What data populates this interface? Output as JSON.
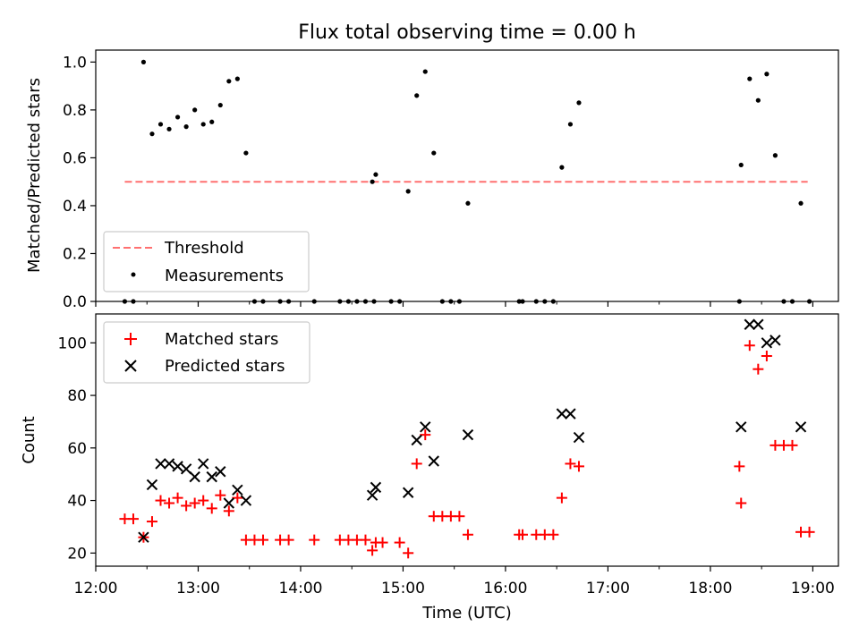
{
  "chart_data": [
    {
      "type": "scatter",
      "title": "Flux total observing time = 0.00 h",
      "xlabel": "",
      "ylabel": "Matched/Predicted stars",
      "xlim": [
        "12:00",
        "19:15"
      ],
      "ylim": [
        0,
        1.05
      ],
      "yticks": [
        "0.0",
        "0.2",
        "0.4",
        "0.6",
        "0.8",
        "1.0"
      ],
      "grid": false,
      "legend_position": "lower-left",
      "threshold": {
        "name": "Threshold",
        "value": 0.5,
        "x_start": "12:17",
        "x_end": "18:57",
        "color": "#ff7070",
        "style": "dashed"
      },
      "series": [
        {
          "name": "Measurements",
          "marker": "dot",
          "color": "#000000",
          "points": [
            [
              "12:17",
              0
            ],
            [
              "12:22",
              0
            ],
            [
              "12:28",
              1.0
            ],
            [
              "12:33",
              0.7
            ],
            [
              "12:38",
              0.74
            ],
            [
              "12:43",
              0.72
            ],
            [
              "12:48",
              0.77
            ],
            [
              "12:53",
              0.73
            ],
            [
              "12:58",
              0.8
            ],
            [
              "13:03",
              0.74
            ],
            [
              "13:08",
              0.75
            ],
            [
              "13:13",
              0.82
            ],
            [
              "13:18",
              0.92
            ],
            [
              "13:23",
              0.93
            ],
            [
              "13:28",
              0.62
            ],
            [
              "13:33",
              0
            ],
            [
              "13:38",
              0
            ],
            [
              "13:48",
              0
            ],
            [
              "13:53",
              0
            ],
            [
              "14:08",
              0
            ],
            [
              "14:23",
              0
            ],
            [
              "14:28",
              0
            ],
            [
              "14:33",
              0
            ],
            [
              "14:38",
              0
            ],
            [
              "14:43",
              0
            ],
            [
              "14:42",
              0.5
            ],
            [
              "14:44",
              0.53
            ],
            [
              "14:53",
              0
            ],
            [
              "14:58",
              0
            ],
            [
              "15:03",
              0.46
            ],
            [
              "15:08",
              0.86
            ],
            [
              "15:13",
              0.96
            ],
            [
              "15:18",
              0.62
            ],
            [
              "15:23",
              0
            ],
            [
              "15:28",
              0
            ],
            [
              "15:33",
              0
            ],
            [
              "15:38",
              0.41
            ],
            [
              "16:08",
              0
            ],
            [
              "16:10",
              0
            ],
            [
              "16:18",
              0
            ],
            [
              "16:23",
              0
            ],
            [
              "16:28",
              0
            ],
            [
              "16:33",
              0.56
            ],
            [
              "16:38",
              0.74
            ],
            [
              "16:43",
              0.83
            ],
            [
              "18:17",
              0
            ],
            [
              "18:18",
              0.57
            ],
            [
              "18:23",
              0.93
            ],
            [
              "18:28",
              0.84
            ],
            [
              "18:33",
              0.95
            ],
            [
              "18:38",
              0.61
            ],
            [
              "18:43",
              0
            ],
            [
              "18:48",
              0
            ],
            [
              "18:53",
              0.41
            ],
            [
              "18:58",
              0
            ]
          ]
        }
      ]
    },
    {
      "type": "scatter",
      "title": "",
      "xlabel": "Time (UTC)",
      "ylabel": "Count",
      "xlim": [
        "12:00",
        "19:15"
      ],
      "ylim": [
        15,
        111
      ],
      "yticks": [
        "20",
        "40",
        "60",
        "80",
        "100"
      ],
      "xticks": [
        "12:00",
        "13:00",
        "14:00",
        "15:00",
        "16:00",
        "17:00",
        "18:00",
        "19:00"
      ],
      "grid": false,
      "legend_position": "upper-left",
      "series": [
        {
          "name": "Matched stars",
          "marker": "plus",
          "color": "#ff0000",
          "points": [
            [
              "12:17",
              33
            ],
            [
              "12:22",
              33
            ],
            [
              "12:28",
              26
            ],
            [
              "12:33",
              32
            ],
            [
              "12:38",
              40
            ],
            [
              "12:43",
              39
            ],
            [
              "12:48",
              41
            ],
            [
              "12:53",
              38
            ],
            [
              "12:58",
              39
            ],
            [
              "13:03",
              40
            ],
            [
              "13:08",
              37
            ],
            [
              "13:13",
              42
            ],
            [
              "13:18",
              36
            ],
            [
              "13:23",
              41
            ],
            [
              "13:28",
              25
            ],
            [
              "13:33",
              25
            ],
            [
              "13:38",
              25
            ],
            [
              "13:48",
              25
            ],
            [
              "13:53",
              25
            ],
            [
              "14:08",
              25
            ],
            [
              "14:23",
              25
            ],
            [
              "14:28",
              25
            ],
            [
              "14:33",
              25
            ],
            [
              "14:38",
              25
            ],
            [
              "14:42",
              21
            ],
            [
              "14:44",
              24
            ],
            [
              "14:48",
              24
            ],
            [
              "14:58",
              24
            ],
            [
              "15:03",
              20
            ],
            [
              "15:08",
              54
            ],
            [
              "15:13",
              65
            ],
            [
              "15:18",
              34
            ],
            [
              "15:23",
              34
            ],
            [
              "15:28",
              34
            ],
            [
              "15:33",
              34
            ],
            [
              "15:38",
              27
            ],
            [
              "16:08",
              27
            ],
            [
              "16:10",
              27
            ],
            [
              "16:18",
              27
            ],
            [
              "16:23",
              27
            ],
            [
              "16:28",
              27
            ],
            [
              "16:33",
              41
            ],
            [
              "16:38",
              54
            ],
            [
              "16:43",
              53
            ],
            [
              "18:17",
              53
            ],
            [
              "18:18",
              39
            ],
            [
              "18:23",
              99
            ],
            [
              "18:28",
              90
            ],
            [
              "18:33",
              95
            ],
            [
              "18:38",
              61
            ],
            [
              "18:43",
              61
            ],
            [
              "18:48",
              61
            ],
            [
              "18:53",
              28
            ],
            [
              "18:58",
              28
            ]
          ]
        },
        {
          "name": "Predicted stars",
          "marker": "x",
          "color": "#000000",
          "points": [
            [
              "12:28",
              26
            ],
            [
              "12:33",
              46
            ],
            [
              "12:38",
              54
            ],
            [
              "12:43",
              54
            ],
            [
              "12:48",
              53
            ],
            [
              "12:53",
              52
            ],
            [
              "12:58",
              49
            ],
            [
              "13:03",
              54
            ],
            [
              "13:08",
              49
            ],
            [
              "13:13",
              51
            ],
            [
              "13:18",
              39
            ],
            [
              "13:23",
              44
            ],
            [
              "13:28",
              40
            ],
            [
              "14:42",
              42
            ],
            [
              "14:44",
              45
            ],
            [
              "15:03",
              43
            ],
            [
              "15:08",
              63
            ],
            [
              "15:13",
              68
            ],
            [
              "15:18",
              55
            ],
            [
              "15:38",
              65
            ],
            [
              "16:33",
              73
            ],
            [
              "16:38",
              73
            ],
            [
              "16:43",
              64
            ],
            [
              "18:18",
              68
            ],
            [
              "18:23",
              107
            ],
            [
              "18:28",
              107
            ],
            [
              "18:33",
              100
            ],
            [
              "18:38",
              101
            ],
            [
              "18:53",
              68
            ]
          ]
        }
      ]
    }
  ]
}
